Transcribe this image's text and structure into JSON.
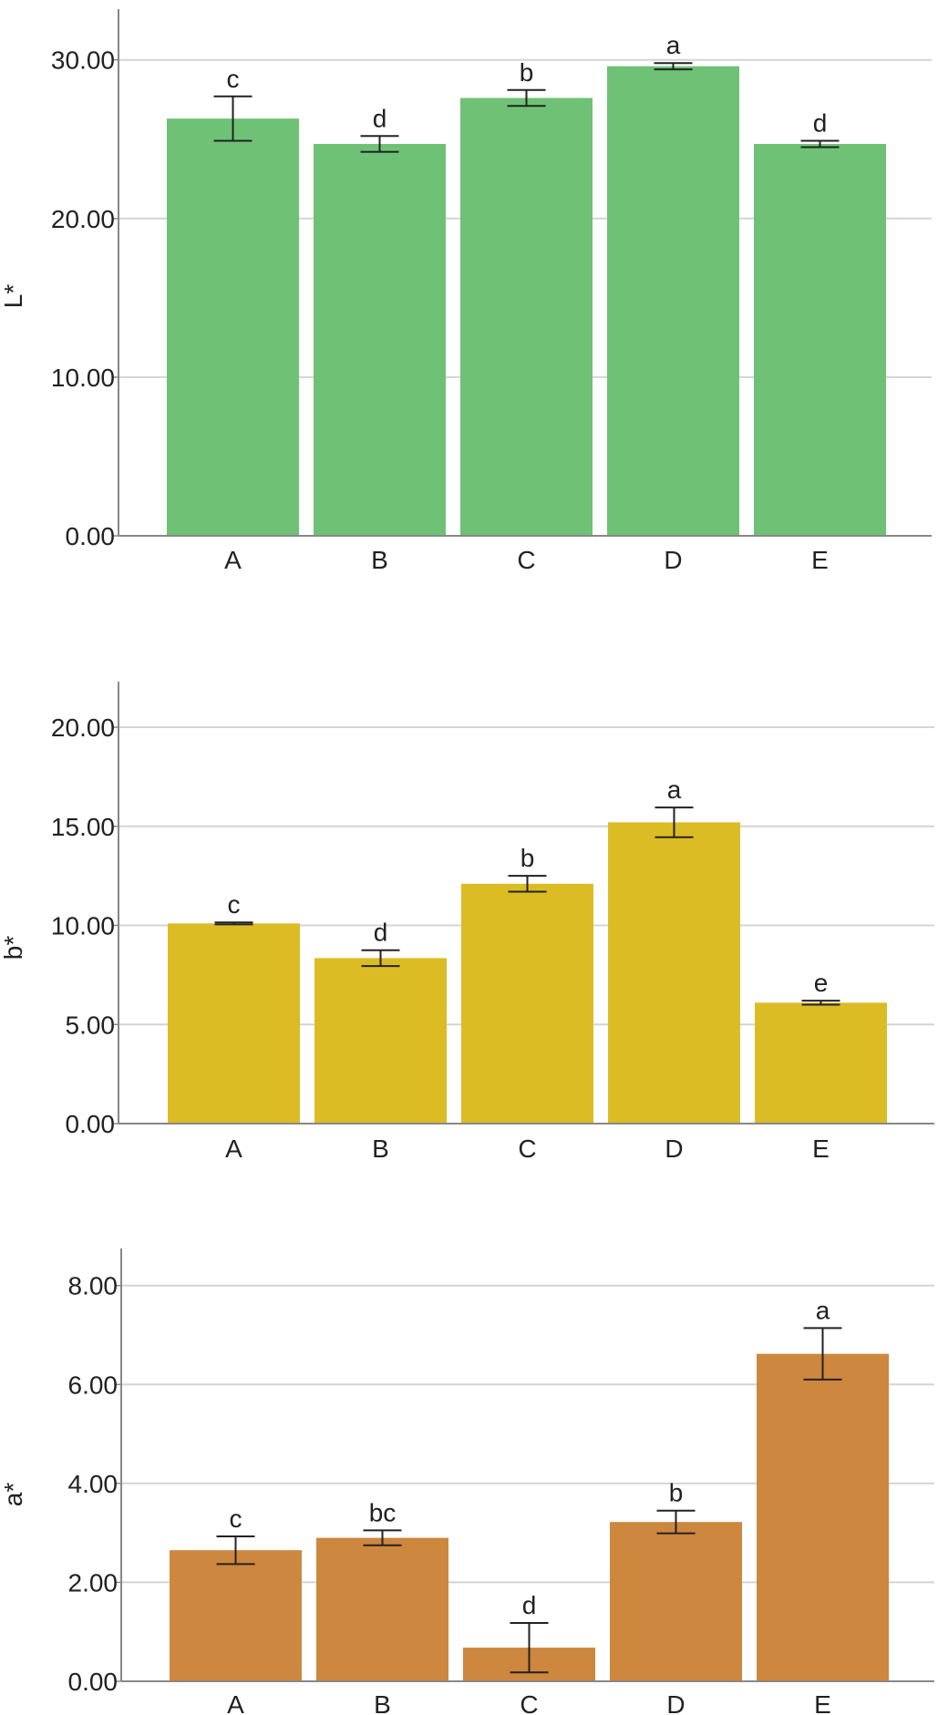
{
  "chart_data": [
    {
      "type": "bar",
      "ylabel": "L*",
      "categories": [
        "A",
        "B",
        "C",
        "D",
        "E"
      ],
      "values": [
        26.3,
        24.7,
        27.6,
        29.6,
        24.7
      ],
      "errors": [
        1.4,
        0.5,
        0.5,
        0.2,
        0.2
      ],
      "significance": [
        "c",
        "d",
        "b",
        "a",
        "d"
      ],
      "ylim": [
        0,
        33.2
      ],
      "yticks": [
        0,
        10,
        20,
        30
      ],
      "ytick_labels": [
        "0.00",
        "10.00",
        "20.00",
        "30.00"
      ],
      "grid": true,
      "color": "#6fc275"
    },
    {
      "type": "bar",
      "ylabel": "b*",
      "categories": [
        "A",
        "B",
        "C",
        "D",
        "E"
      ],
      "values": [
        10.1,
        8.35,
        12.1,
        15.2,
        6.1
      ],
      "errors": [
        0.05,
        0.4,
        0.4,
        0.75,
        0.1
      ],
      "significance": [
        "c",
        "d",
        "b",
        "a",
        "e"
      ],
      "ylim": [
        0,
        22.3
      ],
      "yticks": [
        0,
        5,
        10,
        15,
        20
      ],
      "ytick_labels": [
        "0.00",
        "5.00",
        "10.00",
        "15.00",
        "20.00"
      ],
      "grid": true,
      "color": "#dcbc24"
    },
    {
      "type": "bar",
      "ylabel": "a*",
      "categories": [
        "A",
        "B",
        "C",
        "D",
        "E"
      ],
      "values": [
        2.65,
        2.9,
        0.68,
        3.22,
        6.62
      ],
      "errors": [
        0.28,
        0.15,
        0.5,
        0.23,
        0.52
      ],
      "significance": [
        "c",
        "bc",
        "d",
        "b",
        "a"
      ],
      "ylim": [
        0,
        8.75
      ],
      "yticks": [
        0,
        2,
        4,
        6,
        8
      ],
      "ytick_labels": [
        "0.00",
        "2.00",
        "4.00",
        "6.00",
        "8.00"
      ],
      "grid": true,
      "color": "#cd873f"
    }
  ]
}
